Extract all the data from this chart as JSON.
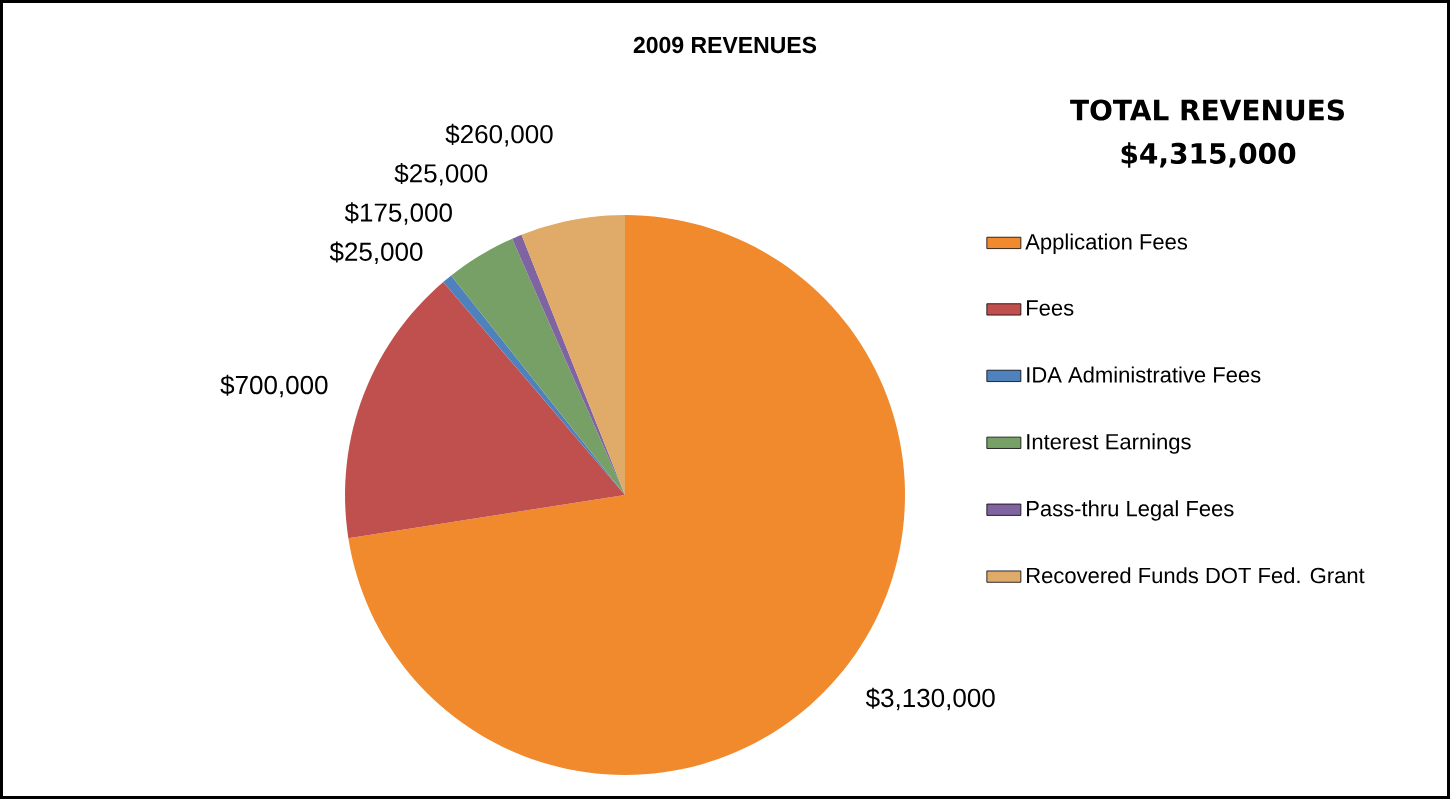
{
  "chart_data": {
    "type": "pie",
    "title": "2009 REVENUES",
    "annotations": [
      "TOTAL REVENUES",
      "$4,315,000"
    ],
    "categories": [
      "Application Fees",
      "Fees",
      "IDA Administrative Fees",
      "Interest Earnings",
      "Pass-thru Legal Fees",
      "Recovered Funds DOT Fed. Grant"
    ],
    "values": [
      3130000,
      700000,
      25000,
      175000,
      25000,
      260000
    ],
    "value_labels": [
      "$3,130,000",
      "$700,000",
      "$25,000",
      "$175,000",
      "$25,000",
      "$260,000"
    ],
    "colors": [
      "#f08a2c",
      "#c0504d",
      "#4f81bd",
      "#76a066",
      "#8064a2",
      "#e0aa68"
    ],
    "legend": "right"
  }
}
